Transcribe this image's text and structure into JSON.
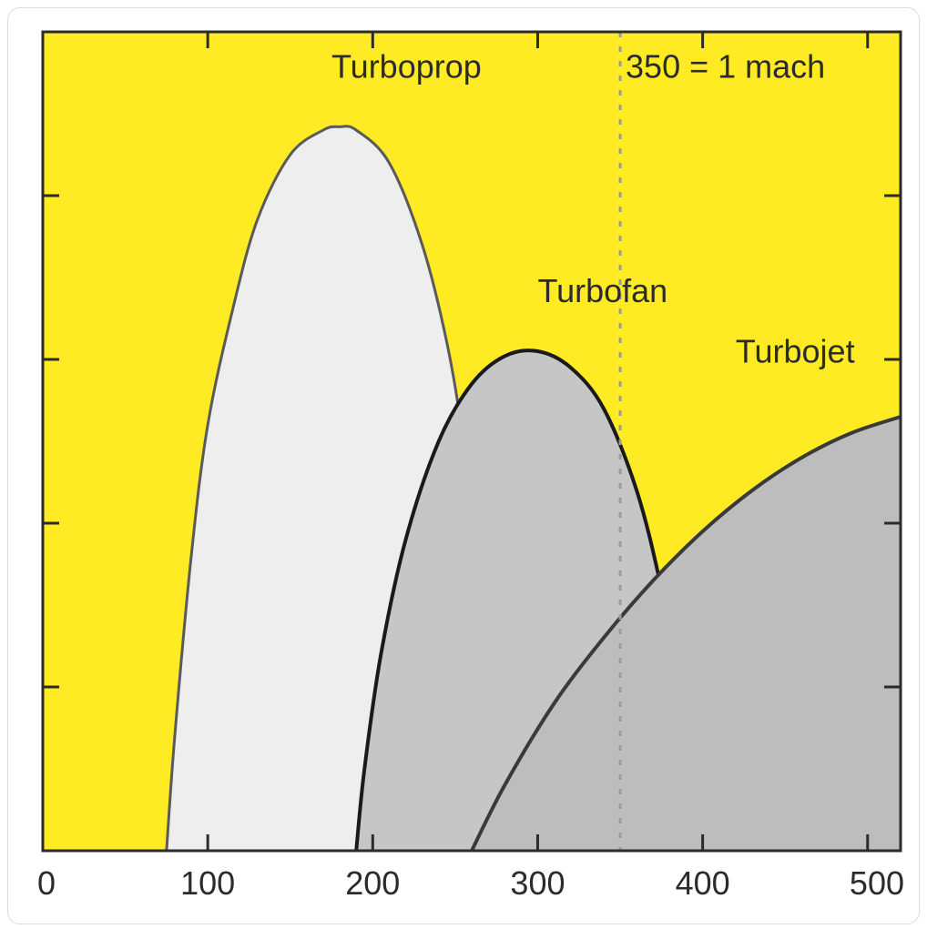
{
  "chart": {
    "type": "area",
    "background_color": "#ffeb24",
    "plot_border_color": "#2b2b2b",
    "plot_border_width": 3,
    "label_color": "#2b2b2b",
    "label_fontsize": 36,
    "tick_fontsize": 36,
    "xlim": [
      0,
      520
    ],
    "ylim": [
      0,
      5
    ],
    "x_ticks": [
      0,
      100,
      200,
      300,
      400,
      500
    ],
    "x_tick_labels": [
      "0",
      "100",
      "200",
      "300",
      "400",
      "500"
    ],
    "y_ticks": [
      0,
      1,
      2,
      3,
      4,
      5
    ],
    "tick_length": 18,
    "tick_width": 3,
    "reference_line": {
      "x": 350,
      "label": "350 = 1 mach",
      "color": "#9a9a9a",
      "dash": "6,10",
      "width": 3
    },
    "series": [
      {
        "name": "Turboprop",
        "label": "Turboprop",
        "label_pos": {
          "x": 175,
          "y": 4.72
        },
        "fill": "#eeeeee",
        "stroke": "#5a5a5a",
        "stroke_width": 3,
        "points": [
          {
            "x": 75,
            "y": 0.0
          },
          {
            "x": 80,
            "y": 0.7
          },
          {
            "x": 90,
            "y": 1.8
          },
          {
            "x": 100,
            "y": 2.6
          },
          {
            "x": 115,
            "y": 3.3
          },
          {
            "x": 130,
            "y": 3.85
          },
          {
            "x": 150,
            "y": 4.25
          },
          {
            "x": 170,
            "y": 4.4
          },
          {
            "x": 180,
            "y": 4.42
          },
          {
            "x": 190,
            "y": 4.4
          },
          {
            "x": 210,
            "y": 4.2
          },
          {
            "x": 230,
            "y": 3.7
          },
          {
            "x": 245,
            "y": 3.1
          },
          {
            "x": 255,
            "y": 2.5
          },
          {
            "x": 265,
            "y": 1.7
          },
          {
            "x": 272,
            "y": 0.9
          },
          {
            "x": 278,
            "y": 0.0
          }
        ]
      },
      {
        "name": "Turbofan",
        "label": "Turbofan",
        "label_pos": {
          "x": 300,
          "y": 3.35
        },
        "fill": "#c6c6c6",
        "stroke": "#1a1a1a",
        "stroke_width": 4,
        "points": [
          {
            "x": 190,
            "y": 0.0
          },
          {
            "x": 195,
            "y": 0.5
          },
          {
            "x": 205,
            "y": 1.2
          },
          {
            "x": 220,
            "y": 1.9
          },
          {
            "x": 240,
            "y": 2.5
          },
          {
            "x": 260,
            "y": 2.85
          },
          {
            "x": 280,
            "y": 3.02
          },
          {
            "x": 300,
            "y": 3.05
          },
          {
            "x": 320,
            "y": 2.95
          },
          {
            "x": 340,
            "y": 2.7
          },
          {
            "x": 360,
            "y": 2.2
          },
          {
            "x": 375,
            "y": 1.6
          },
          {
            "x": 388,
            "y": 0.9
          },
          {
            "x": 398,
            "y": 0.0
          }
        ]
      },
      {
        "name": "Turbojet",
        "label": "Turbojet",
        "label_pos": {
          "x": 420,
          "y": 2.98
        },
        "fill": "#bdbdbd",
        "stroke": "#3a3a3a",
        "stroke_width": 4,
        "points": [
          {
            "x": 260,
            "y": 0.0
          },
          {
            "x": 280,
            "y": 0.4
          },
          {
            "x": 310,
            "y": 0.9
          },
          {
            "x": 340,
            "y": 1.3
          },
          {
            "x": 370,
            "y": 1.65
          },
          {
            "x": 400,
            "y": 1.95
          },
          {
            "x": 430,
            "y": 2.2
          },
          {
            "x": 460,
            "y": 2.4
          },
          {
            "x": 490,
            "y": 2.55
          },
          {
            "x": 520,
            "y": 2.65
          }
        ],
        "close_to_right": true
      }
    ]
  }
}
